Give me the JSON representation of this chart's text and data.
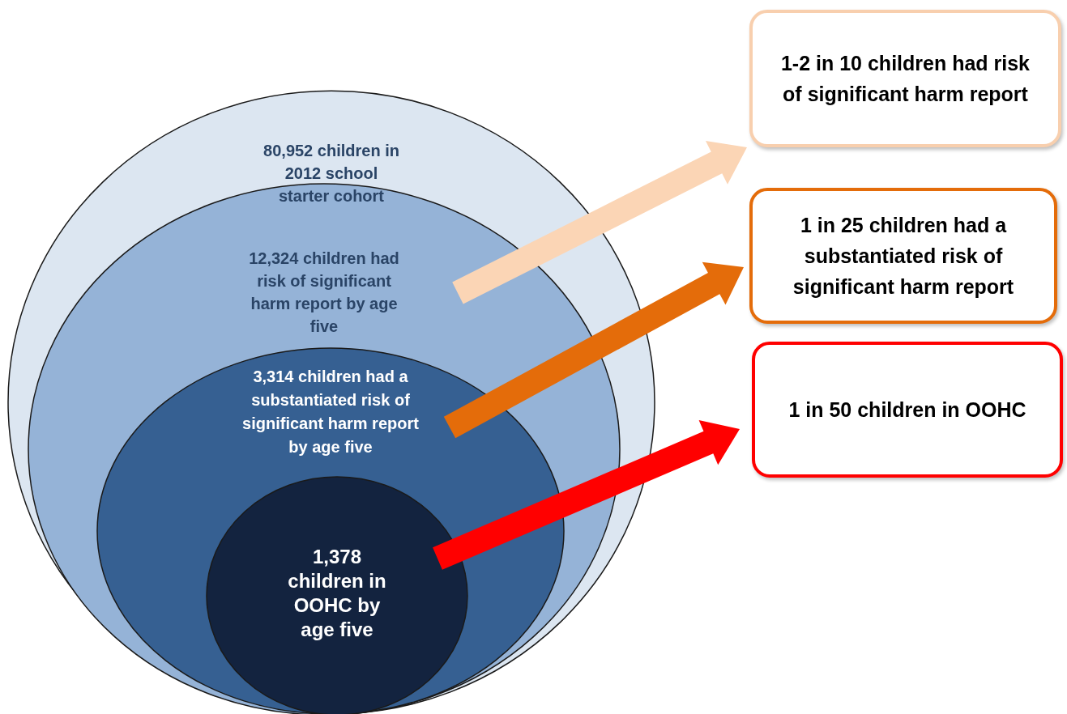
{
  "chart_data": {
    "type": "other",
    "categories": [
      "children in 2012 school starter cohort",
      "children had risk of significant harm report by age five",
      "children had a substantiated risk of significant harm report by age five",
      "children in OOHC by age five"
    ],
    "values": [
      80952,
      12324,
      3314,
      1378
    ],
    "value_labels": [
      "80,952",
      "12,324",
      "3,314",
      "1,378"
    ],
    "colors": [
      "#dce6f1",
      "#95b3d7",
      "#366092",
      "#13233f"
    ],
    "annotations": [
      "1-2 in 10 children had risk of significant harm report",
      "1 in 25 children had a substantiated risk of significant harm report",
      "1 in 50 children in OOHC"
    ]
  }
}
